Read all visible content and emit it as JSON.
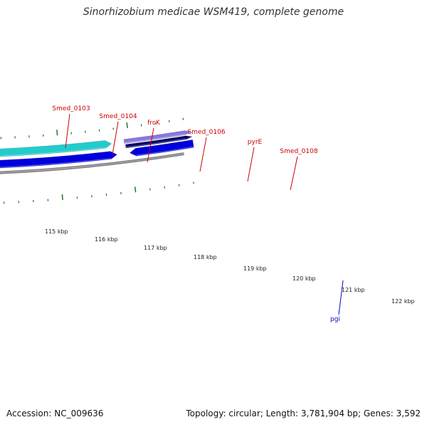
{
  "header": {
    "title": "Sinorhizobium medicae WSM419, complete genome"
  },
  "footer": {
    "accession": "Accession: NC_009636",
    "summary": "Topology: circular; Length: 3,781,904 bp; Genes: 3,592"
  },
  "colors": {
    "backbone": "#808080",
    "tick": "#2e7d2e",
    "red_gene": "#ff0000",
    "blue_gene": "#0000dd",
    "light_blue_gene": "#33bbee",
    "cyan_gene": "#22cccc",
    "navy_gene": "#000066",
    "lavender_gene": "#8877dd",
    "label_red": "#cc0000",
    "label_blue": "#0000cc"
  },
  "scale": {
    "labels": [
      "115 kbp",
      "116 kbp",
      "117 kbp",
      "118 kbp",
      "119 kbp",
      "120 kbp",
      "121 kbp",
      "122 kbp"
    ]
  },
  "gene_labels": [
    {
      "text": "Smed_0103",
      "color": "#cc0000"
    },
    {
      "text": "Smed_0104",
      "color": "#cc0000"
    },
    {
      "text": "frcK",
      "color": "#cc0000"
    },
    {
      "text": "Smed_0106",
      "color": "#cc0000"
    },
    {
      "text": "pyrE",
      "color": "#cc0000"
    },
    {
      "text": "Smed_0108",
      "color": "#cc0000"
    },
    {
      "text": "pgi",
      "color": "#0000cc"
    }
  ]
}
